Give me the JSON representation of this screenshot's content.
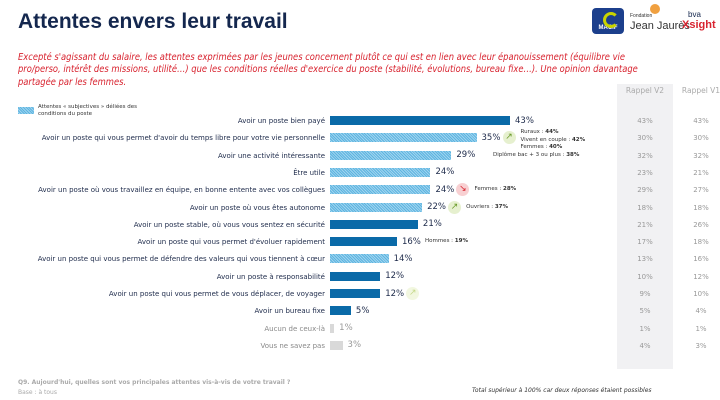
{
  "title": "Attentes envers leur travail",
  "subtitle": "Excepté s'agissant du salaire, les attentes exprimées par les jeunes concernent plutôt ce qui est en lien avec leur épanouissement (équilibre vie pro/perso, intérêt des missions, utilité…) que les conditions réelles d'exercice du poste (stabilité, évolutions, bureau fixe…). Une opinion davantage partagée par les femmes.",
  "logos": [
    "MACIF",
    "Fondation Jean Jaurès",
    "bva Xsight"
  ],
  "colors": {
    "solid": "#0a6aa8",
    "pattern": "#5db4e0",
    "none": "#d9d9d9",
    "up": "#6a9a2a",
    "down": "#d8232f"
  },
  "chart_data": {
    "type": "bar",
    "orientation": "horizontal",
    "legend": {
      "label": "Attentes « subjectives » déliées des conditions du poste",
      "placement": "top-left"
    },
    "columns": [
      "Rappel V2",
      "Rappel V1"
    ],
    "rows": [
      {
        "label": "Avoir un poste bien payé",
        "value": 43,
        "display": "43%",
        "subjective": false,
        "v2": "43%",
        "v1": "43%"
      },
      {
        "label": "Avoir un poste qui vous permet d'avoir du temps libre pour votre vie personnelle",
        "value": 35,
        "display": "35%",
        "subjective": true,
        "v2": "30%",
        "v1": "30%",
        "trend": "up",
        "notes": [
          [
            "Ruraux : ",
            "44%"
          ],
          [
            "Vivent en couple : ",
            "42%"
          ],
          [
            "Femmes : ",
            "40%"
          ]
        ]
      },
      {
        "label": "Avoir une activité intéressante",
        "value": 29,
        "display": "29%",
        "subjective": true,
        "v2": "32%",
        "v1": "32%",
        "notes": [
          [
            "Diplôme bac + 3 ou plus : ",
            "38%"
          ]
        ]
      },
      {
        "label": "Être utile",
        "value": 24,
        "display": "24%",
        "subjective": true,
        "v2": "23%",
        "v1": "21%"
      },
      {
        "label": "Avoir un poste où vous travaillez en équipe, en bonne entente avec vos collègues",
        "value": 24,
        "display": "24%",
        "subjective": true,
        "v2": "29%",
        "v1": "27%",
        "trend": "down",
        "notes": [
          [
            "Femmes : ",
            "28%"
          ]
        ]
      },
      {
        "label": "Avoir un poste où vous êtes autonome",
        "value": 22,
        "display": "22%",
        "subjective": true,
        "v2": "18%",
        "v1": "18%",
        "trend": "up",
        "notes": [
          [
            "Ouvriers : ",
            "37%"
          ]
        ]
      },
      {
        "label": "Avoir un poste stable, où vous vous sentez en sécurité",
        "value": 21,
        "display": "21%",
        "subjective": false,
        "v2": "21%",
        "v1": "26%"
      },
      {
        "label": "Avoir un poste qui vous permet d'évoluer rapidement",
        "value": 16,
        "display": "16%",
        "subjective": false,
        "v2": "17%",
        "v1": "18%",
        "notes": [
          [
            "Hommes : ",
            "19%"
          ]
        ]
      },
      {
        "label": "Avoir un poste qui vous permet de défendre des valeurs qui vous tiennent à cœur",
        "value": 14,
        "display": "14%",
        "subjective": true,
        "v2": "13%",
        "v1": "16%"
      },
      {
        "label": "Avoir un poste à responsabilité",
        "value": 12,
        "display": "12%",
        "subjective": false,
        "v2": "10%",
        "v1": "12%"
      },
      {
        "label": "Avoir un poste qui vous permet de vous déplacer, de voyager",
        "value": 12,
        "display": "12%",
        "subjective": false,
        "v2": "9%",
        "v1": "10%",
        "trend": "up-faint"
      },
      {
        "label": "Avoir un bureau fixe",
        "value": 5,
        "display": "5%",
        "subjective": false,
        "v2": "5%",
        "v1": "4%"
      },
      {
        "label": "Aucun de ceux-là",
        "value": 1,
        "display": "1%",
        "subjective": false,
        "grey": true,
        "v2": "1%",
        "v1": "1%"
      },
      {
        "label": "Vous ne savez pas",
        "value": 3,
        "display": "3%",
        "subjective": false,
        "grey": true,
        "v2": "4%",
        "v1": "3%"
      }
    ],
    "xlim": [
      0,
      43
    ]
  },
  "footer": {
    "question": "Q9. Aujourd'hui, quelles sont vos principales attentes vis-à-vis de votre travail ?",
    "base": "Base : à tous",
    "note": "Total supérieur à 100% car deux réponses étaient possibles"
  }
}
